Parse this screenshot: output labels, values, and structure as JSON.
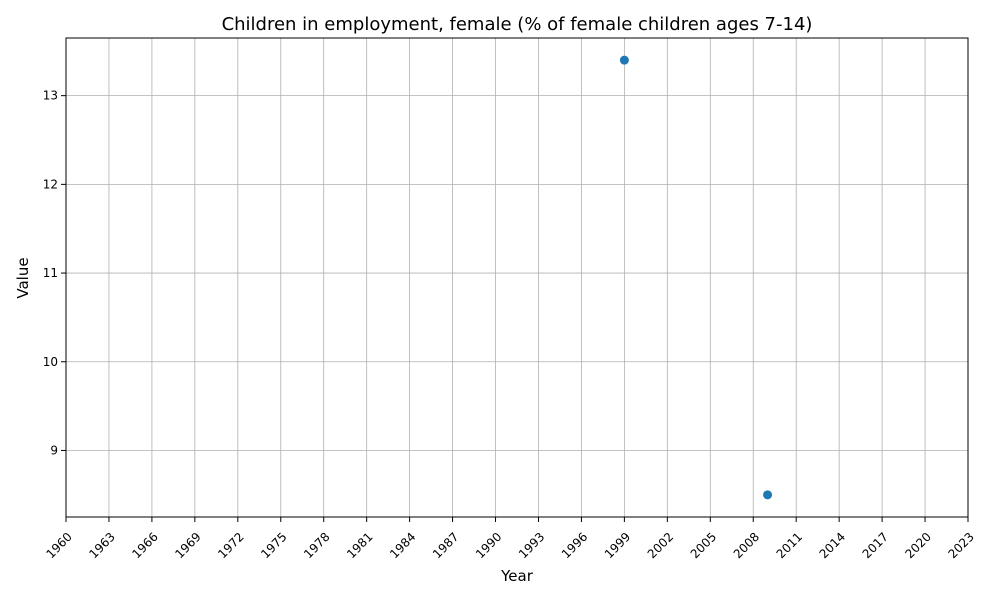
{
  "chart_data": {
    "type": "scatter",
    "title": "Children in employment, female (% of female children ages 7-14)",
    "xlabel": "Year",
    "ylabel": "Value",
    "xlim": [
      1960,
      2023
    ],
    "ylim": [
      8.25,
      13.65
    ],
    "x_ticks": [
      1960,
      1963,
      1966,
      1969,
      1972,
      1975,
      1978,
      1981,
      1984,
      1987,
      1990,
      1993,
      1996,
      1999,
      2002,
      2005,
      2008,
      2011,
      2014,
      2017,
      2020,
      2023
    ],
    "y_ticks": [
      9,
      10,
      11,
      12,
      13
    ],
    "grid": true,
    "series": [
      {
        "color": "#1f77b4",
        "points": [
          {
            "x": 1999,
            "y": 13.4
          },
          {
            "x": 2009,
            "y": 8.5
          }
        ]
      }
    ]
  }
}
